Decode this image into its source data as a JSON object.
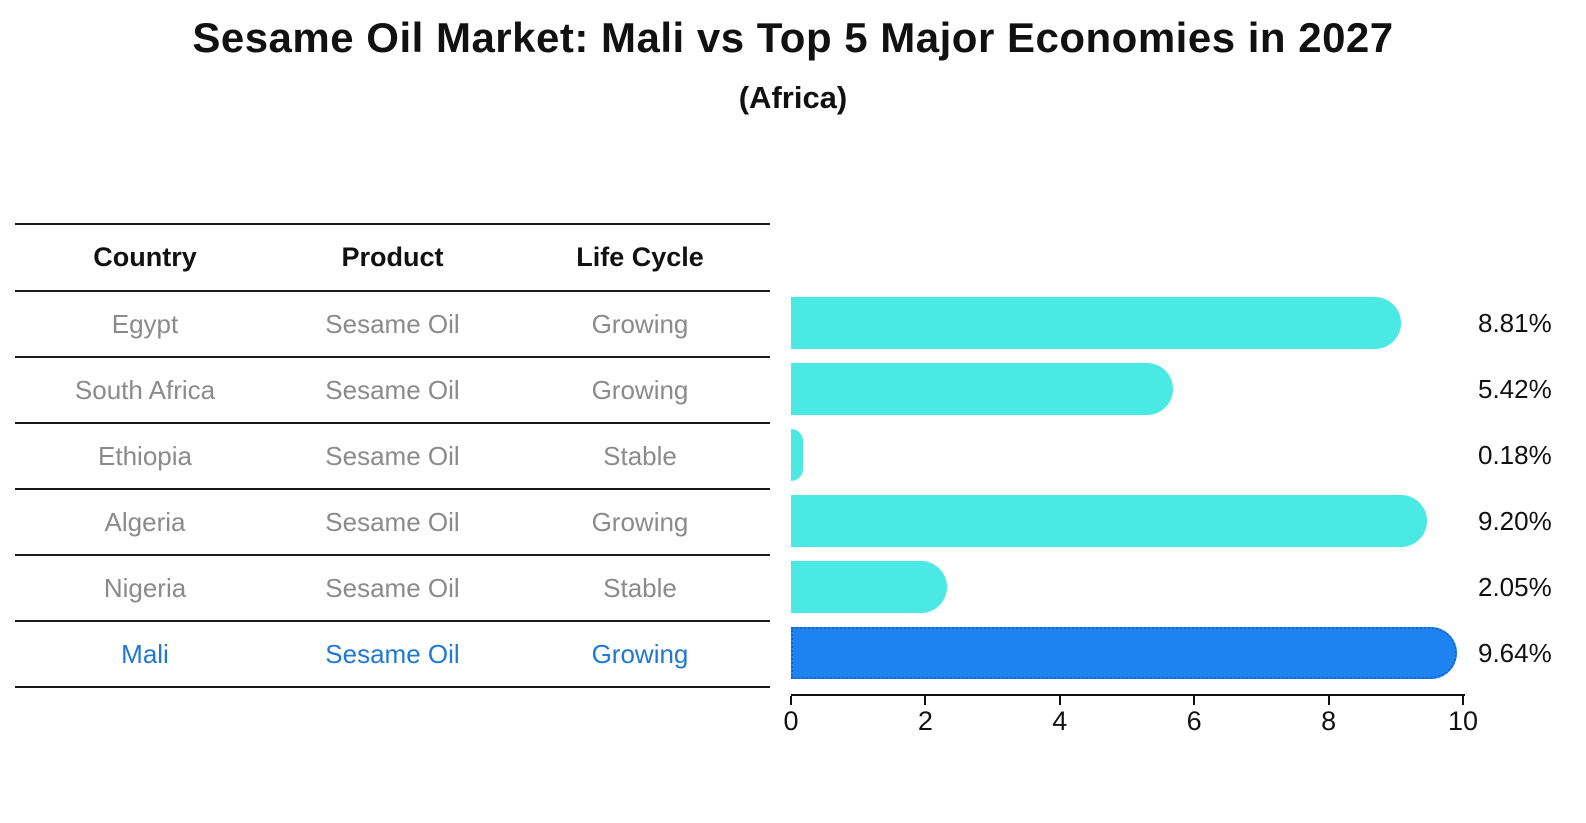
{
  "title": "Sesame Oil Market: Mali vs Top 5 Major Economies in 2027",
  "subtitle": "(Africa)",
  "table": {
    "headers": [
      "Country",
      "Product",
      "Life Cycle"
    ],
    "rows": [
      {
        "country": "Egypt",
        "product": "Sesame Oil",
        "life_cycle": "Growing",
        "highlight": false
      },
      {
        "country": "South Africa",
        "product": "Sesame Oil",
        "life_cycle": "Growing",
        "highlight": false
      },
      {
        "country": "Ethiopia",
        "product": "Sesame Oil",
        "life_cycle": "Stable",
        "highlight": false
      },
      {
        "country": "Algeria",
        "product": "Sesame Oil",
        "life_cycle": "Growing",
        "highlight": false
      },
      {
        "country": "Nigeria",
        "product": "Sesame Oil",
        "life_cycle": "Stable",
        "highlight": false
      },
      {
        "country": "Mali",
        "product": "Sesame Oil",
        "life_cycle": "Growing",
        "highlight": true
      }
    ]
  },
  "chart_data": {
    "type": "bar",
    "orientation": "horizontal",
    "title": "Sesame Oil Market: Mali vs Top 5 Major Economies in 2027",
    "subtitle": "(Africa)",
    "categories": [
      "Egypt",
      "South Africa",
      "Ethiopia",
      "Algeria",
      "Nigeria",
      "Mali"
    ],
    "values": [
      8.81,
      5.42,
      0.18,
      9.2,
      2.05,
      9.64
    ],
    "value_labels": [
      "8.81%",
      "5.42%",
      "0.18%",
      "9.20%",
      "2.05%",
      "9.64%"
    ],
    "xlim": [
      0,
      10
    ],
    "x_ticks": [
      0,
      2,
      4,
      6,
      8,
      10
    ],
    "highlight_index": 5,
    "grid": false,
    "legend": false
  },
  "colors": {
    "bar": "#4BE9E4",
    "highlight_bar": "#1C83F0",
    "highlight_bar_border": "#1565CD",
    "text_primary": "#111111",
    "text_muted": "#8b8b8b",
    "highlight_text": "#1f78d2"
  }
}
